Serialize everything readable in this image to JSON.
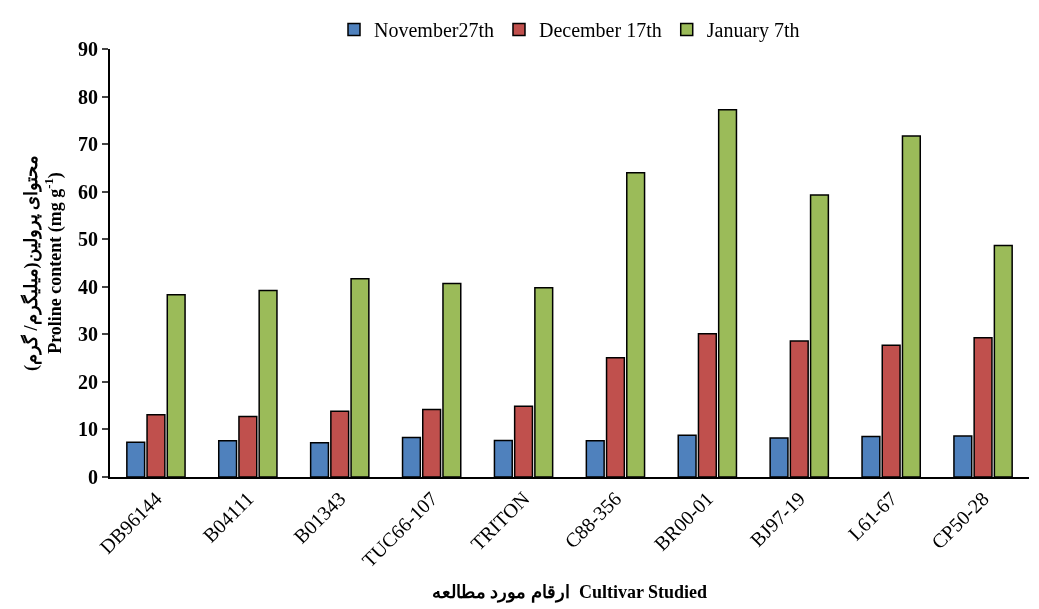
{
  "chart_data": {
    "type": "bar",
    "categories": [
      "DB96144",
      "B04111",
      "B01343",
      "TUC66-107",
      "TRITON",
      "C88-356",
      "BR00-01",
      "BJ97-19",
      "L61-67",
      "CP50-28"
    ],
    "series": [
      {
        "name": "November27th",
        "color": "#4f81bd",
        "values": [
          7.3,
          7.6,
          7.2,
          8.3,
          7.7,
          7.6,
          8.8,
          8.2,
          8.5,
          8.6
        ]
      },
      {
        "name": "December 17th",
        "color": "#c0504d",
        "values": [
          13.1,
          12.7,
          13.8,
          14.2,
          14.9,
          25.1,
          30.1,
          28.6,
          27.7,
          29.3
        ]
      },
      {
        "name": "January 7th",
        "color": "#9bbb59",
        "values": [
          38.3,
          39.2,
          41.7,
          40.7,
          39.8,
          64.0,
          77.2,
          59.3,
          71.7,
          48.7
        ]
      }
    ],
    "xlabel": "ارقام مورد مطالعه  Cultivar Studied",
    "ylabel": "محتوای پرولین(میلیگرم/ گرم)\nProline content (mg g$^{-1}$)",
    "ylim": [
      0,
      90
    ],
    "yticks": [
      0,
      10,
      20,
      30,
      40,
      50,
      60,
      70,
      80,
      90
    ],
    "grid": false,
    "legend": "top"
  }
}
